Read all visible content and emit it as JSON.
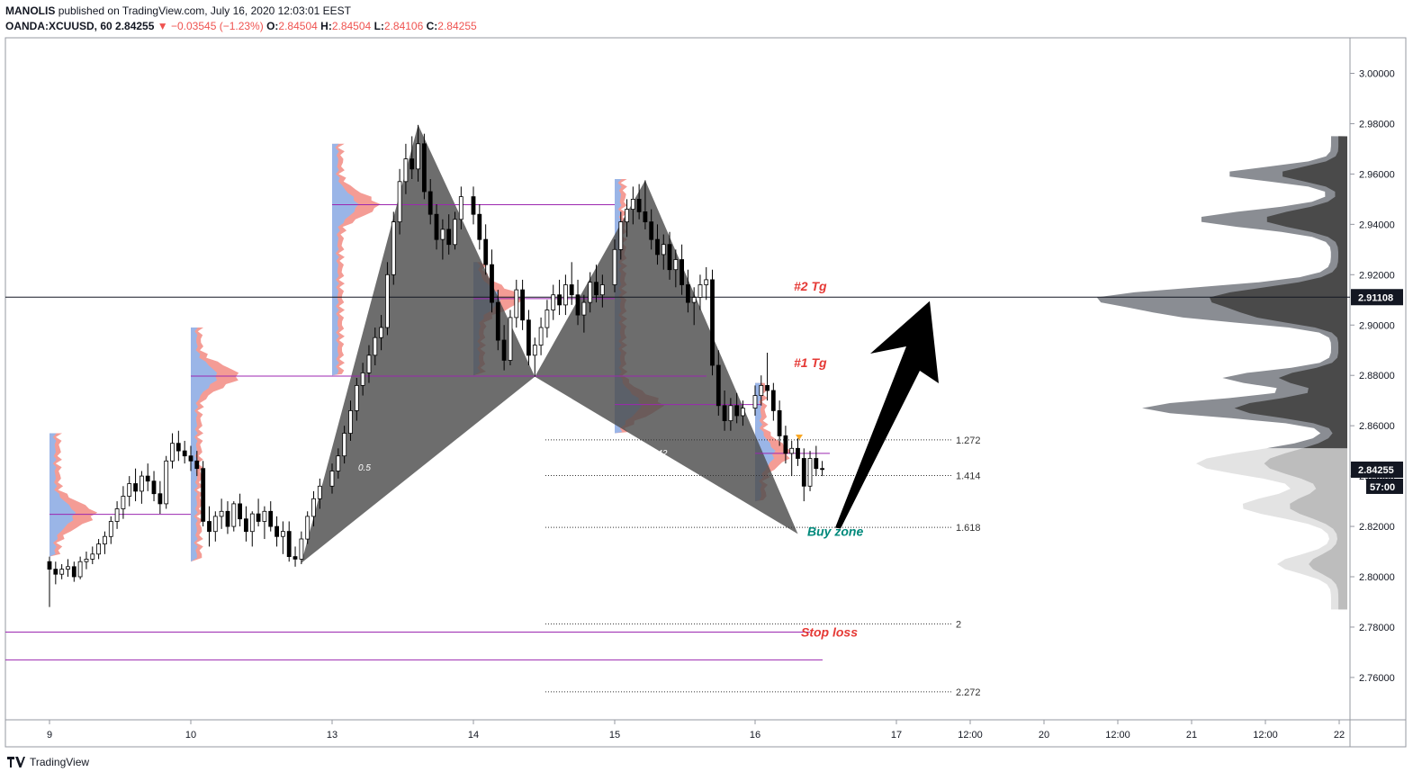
{
  "header": {
    "author": "MANOLIS",
    "published": "published on TradingView.com, July 16, 2020 12:03:01 EEST",
    "symbol": "OANDA:XCUUSD, 60",
    "last": "2.84255",
    "change": "▼ −0.03545 (−1.23%)",
    "o_label": "O:",
    "o": "2.84504",
    "h_label": "H:",
    "h": "2.84504",
    "l_label": "L:",
    "l": "2.84106",
    "c_label": "C:",
    "c": "2.84255"
  },
  "footer": {
    "brand": "TradingView"
  },
  "chart_data": {
    "type": "candlestick",
    "title": "",
    "y_ticks": [
      "3.00000",
      "2.98000",
      "2.96000",
      "2.94000",
      "2.92000",
      "2.90000",
      "2.88000",
      "2.86000",
      "2.84000",
      "2.82000",
      "2.80000",
      "2.78000",
      "2.76000"
    ],
    "x_ticks": [
      "9",
      "10",
      "13",
      "14",
      "15",
      "16",
      "17",
      "12:00",
      "20",
      "12:00",
      "21",
      "12:00",
      "22"
    ],
    "ylim": [
      2.746,
      3.01
    ],
    "price_labels": {
      "crosshair": "2.91108",
      "last": "2.84255",
      "countdown": "57:00"
    },
    "crosshair_price": 2.91108,
    "last_price": 2.84255,
    "harmonic_pattern": {
      "points": [
        {
          "date": "Jul 10 18:00",
          "price": 2.8055
        },
        {
          "date": "Jul 13 14:00",
          "price": 2.9795
        },
        {
          "date": "Jul 14 10:00",
          "price": 2.8795
        },
        {
          "date": "Jul 15 05:00",
          "price": 2.9575
        },
        {
          "date": "Jul 16 07:00",
          "price": 2.817
        }
      ],
      "ratio_labels": [
        "0.5",
        ".842"
      ]
    },
    "fib_levels": [
      {
        "label": "1.272",
        "price": 2.8544
      },
      {
        "label": "1.414",
        "price": 2.8402
      },
      {
        "label": "1.618",
        "price": 2.8196
      },
      {
        "label": "2",
        "price": 2.7813
      },
      {
        "label": "2.272",
        "price": 2.7543
      }
    ],
    "horizontal_lines": [
      2.9478,
      2.9105,
      2.8797,
      2.8684,
      2.849,
      2.8248,
      2.778,
      2.767
    ],
    "annotations": [
      {
        "text": "#2 Tg",
        "price": 2.9155,
        "color": "#e53935"
      },
      {
        "text": "#1 Tg",
        "price": 2.885,
        "color": "#e53935"
      },
      {
        "text": "Buy zone",
        "price": 2.818,
        "color": "#00897b"
      },
      {
        "text": "Stop loss",
        "price": 2.778,
        "color": "#e53935"
      }
    ],
    "arrow": {
      "from_price": 2.8195,
      "to_price": 2.9095
    },
    "candles": [
      {
        "d": "Jul 9 00:00",
        "o": 2.806,
        "h": 2.808,
        "l": 2.788,
        "c": 2.803
      },
      {
        "d": "Jul 9 01:00",
        "o": 2.803,
        "h": 2.806,
        "l": 2.797,
        "c": 2.801
      },
      {
        "d": "Jul 9 02:00",
        "o": 2.801,
        "h": 2.805,
        "l": 2.799,
        "c": 2.803
      },
      {
        "d": "Jul 9 03:00",
        "o": 2.803,
        "h": 2.807,
        "l": 2.8,
        "c": 2.804
      },
      {
        "d": "Jul 9 04:00",
        "o": 2.804,
        "h": 2.806,
        "l": 2.798,
        "c": 2.8
      },
      {
        "d": "Jul 9 05:00",
        "o": 2.8,
        "h": 2.808,
        "l": 2.799,
        "c": 2.806
      },
      {
        "d": "Jul 9 06:00",
        "o": 2.806,
        "h": 2.81,
        "l": 2.803,
        "c": 2.807
      },
      {
        "d": "Jul 9 07:00",
        "o": 2.807,
        "h": 2.812,
        "l": 2.805,
        "c": 2.809
      },
      {
        "d": "Jul 9 08:00",
        "o": 2.809,
        "h": 2.815,
        "l": 2.807,
        "c": 2.813
      },
      {
        "d": "Jul 9 09:00",
        "o": 2.813,
        "h": 2.818,
        "l": 2.809,
        "c": 2.816
      },
      {
        "d": "Jul 9 10:00",
        "o": 2.816,
        "h": 2.824,
        "l": 2.813,
        "c": 2.822
      },
      {
        "d": "Jul 9 11:00",
        "o": 2.822,
        "h": 2.83,
        "l": 2.819,
        "c": 2.827
      },
      {
        "d": "Jul 9 12:00",
        "o": 2.827,
        "h": 2.836,
        "l": 2.823,
        "c": 2.832
      },
      {
        "d": "Jul 9 13:00",
        "o": 2.832,
        "h": 2.84,
        "l": 2.828,
        "c": 2.837
      },
      {
        "d": "Jul 9 14:00",
        "o": 2.837,
        "h": 2.843,
        "l": 2.83,
        "c": 2.834
      },
      {
        "d": "Jul 9 15:00",
        "o": 2.834,
        "h": 2.842,
        "l": 2.829,
        "c": 2.84
      },
      {
        "d": "Jul 9 16:00",
        "o": 2.84,
        "h": 2.845,
        "l": 2.834,
        "c": 2.838
      },
      {
        "d": "Jul 9 17:00",
        "o": 2.838,
        "h": 2.842,
        "l": 2.83,
        "c": 2.833
      },
      {
        "d": "Jul 9 18:00",
        "o": 2.833,
        "h": 2.838,
        "l": 2.825,
        "c": 2.829
      },
      {
        "d": "Jul 9 19:00",
        "o": 2.829,
        "h": 2.848,
        "l": 2.827,
        "c": 2.846
      },
      {
        "d": "Jul 9 20:00",
        "o": 2.846,
        "h": 2.857,
        "l": 2.843,
        "c": 2.853
      },
      {
        "d": "Jul 9 21:00",
        "o": 2.853,
        "h": 2.858,
        "l": 2.846,
        "c": 2.85
      },
      {
        "d": "Jul 9 22:00",
        "o": 2.85,
        "h": 2.854,
        "l": 2.845,
        "c": 2.848
      },
      {
        "d": "Jul 10 00:00",
        "o": 2.848,
        "h": 2.852,
        "l": 2.842,
        "c": 2.846
      },
      {
        "d": "Jul 10 01:00",
        "o": 2.846,
        "h": 2.85,
        "l": 2.84,
        "c": 2.843
      },
      {
        "d": "Jul 10 02:00",
        "o": 2.843,
        "h": 2.846,
        "l": 2.82,
        "c": 2.822
      },
      {
        "d": "Jul 10 03:00",
        "o": 2.822,
        "h": 2.828,
        "l": 2.812,
        "c": 2.818
      },
      {
        "d": "Jul 10 04:00",
        "o": 2.818,
        "h": 2.826,
        "l": 2.814,
        "c": 2.824
      },
      {
        "d": "Jul 10 05:00",
        "o": 2.824,
        "h": 2.831,
        "l": 2.819,
        "c": 2.826
      },
      {
        "d": "Jul 10 06:00",
        "o": 2.826,
        "h": 2.83,
        "l": 2.817,
        "c": 2.82
      },
      {
        "d": "Jul 10 07:00",
        "o": 2.82,
        "h": 2.83,
        "l": 2.818,
        "c": 2.829
      },
      {
        "d": "Jul 10 08:00",
        "o": 2.829,
        "h": 2.833,
        "l": 2.82,
        "c": 2.823
      },
      {
        "d": "Jul 10 09:00",
        "o": 2.823,
        "h": 2.828,
        "l": 2.814,
        "c": 2.818
      },
      {
        "d": "Jul 10 10:00",
        "o": 2.818,
        "h": 2.826,
        "l": 2.812,
        "c": 2.825
      },
      {
        "d": "Jul 10 11:00",
        "o": 2.825,
        "h": 2.831,
        "l": 2.82,
        "c": 2.822
      },
      {
        "d": "Jul 10 12:00",
        "o": 2.822,
        "h": 2.828,
        "l": 2.815,
        "c": 2.826
      },
      {
        "d": "Jul 10 13:00",
        "o": 2.826,
        "h": 2.83,
        "l": 2.818,
        "c": 2.82
      },
      {
        "d": "Jul 10 14:00",
        "o": 2.82,
        "h": 2.824,
        "l": 2.812,
        "c": 2.816
      },
      {
        "d": "Jul 10 15:00",
        "o": 2.816,
        "h": 2.822,
        "l": 2.809,
        "c": 2.818
      },
      {
        "d": "Jul 10 16:00",
        "o": 2.818,
        "h": 2.822,
        "l": 2.806,
        "c": 2.808
      },
      {
        "d": "Jul 10 17:00",
        "o": 2.808,
        "h": 2.812,
        "l": 2.804,
        "c": 2.807
      },
      {
        "d": "Jul 10 18:00",
        "o": 2.807,
        "h": 2.818,
        "l": 2.805,
        "c": 2.815
      },
      {
        "d": "Jul 10 19:00",
        "o": 2.815,
        "h": 2.826,
        "l": 2.813,
        "c": 2.824
      },
      {
        "d": "Jul 10 20:00",
        "o": 2.824,
        "h": 2.834,
        "l": 2.82,
        "c": 2.831
      },
      {
        "d": "Jul 10 21:00",
        "o": 2.831,
        "h": 2.839,
        "l": 2.827,
        "c": 2.836
      },
      {
        "d": "Jul 13 00:00",
        "o": 2.836,
        "h": 2.845,
        "l": 2.833,
        "c": 2.842
      },
      {
        "d": "Jul 13 01:00",
        "o": 2.842,
        "h": 2.851,
        "l": 2.839,
        "c": 2.848
      },
      {
        "d": "Jul 13 02:00",
        "o": 2.848,
        "h": 2.86,
        "l": 2.845,
        "c": 2.857
      },
      {
        "d": "Jul 13 03:00",
        "o": 2.857,
        "h": 2.87,
        "l": 2.854,
        "c": 2.866
      },
      {
        "d": "Jul 13 04:00",
        "o": 2.866,
        "h": 2.879,
        "l": 2.862,
        "c": 2.876
      },
      {
        "d": "Jul 13 05:00",
        "o": 2.876,
        "h": 2.885,
        "l": 2.872,
        "c": 2.881
      },
      {
        "d": "Jul 13 06:00",
        "o": 2.881,
        "h": 2.892,
        "l": 2.877,
        "c": 2.888
      },
      {
        "d": "Jul 13 07:00",
        "o": 2.888,
        "h": 2.899,
        "l": 2.884,
        "c": 2.895
      },
      {
        "d": "Jul 13 08:00",
        "o": 2.895,
        "h": 2.904,
        "l": 2.89,
        "c": 2.899
      },
      {
        "d": "Jul 13 09:00",
        "o": 2.899,
        "h": 2.925,
        "l": 2.896,
        "c": 2.92
      },
      {
        "d": "Jul 13 10:00",
        "o": 2.92,
        "h": 2.945,
        "l": 2.916,
        "c": 2.941
      },
      {
        "d": "Jul 13 11:00",
        "o": 2.941,
        "h": 2.962,
        "l": 2.936,
        "c": 2.957
      },
      {
        "d": "Jul 13 12:00",
        "o": 2.957,
        "h": 2.972,
        "l": 2.952,
        "c": 2.966
      },
      {
        "d": "Jul 13 13:00",
        "o": 2.966,
        "h": 2.975,
        "l": 2.958,
        "c": 2.962
      },
      {
        "d": "Jul 13 14:00",
        "o": 2.962,
        "h": 2.9795,
        "l": 2.957,
        "c": 2.972
      },
      {
        "d": "Jul 13 15:00",
        "o": 2.972,
        "h": 2.976,
        "l": 2.95,
        "c": 2.953
      },
      {
        "d": "Jul 13 16:00",
        "o": 2.953,
        "h": 2.958,
        "l": 2.94,
        "c": 2.944
      },
      {
        "d": "Jul 13 17:00",
        "o": 2.944,
        "h": 2.948,
        "l": 2.93,
        "c": 2.934
      },
      {
        "d": "Jul 13 18:00",
        "o": 2.934,
        "h": 2.942,
        "l": 2.926,
        "c": 2.938
      },
      {
        "d": "Jul 13 19:00",
        "o": 2.938,
        "h": 2.944,
        "l": 2.928,
        "c": 2.932
      },
      {
        "d": "Jul 13 20:00",
        "o": 2.932,
        "h": 2.945,
        "l": 2.93,
        "c": 2.942
      },
      {
        "d": "Jul 13 21:00",
        "o": 2.942,
        "h": 2.955,
        "l": 2.938,
        "c": 2.951
      },
      {
        "d": "Jul 14 00:00",
        "o": 2.951,
        "h": 2.955,
        "l": 2.94,
        "c": 2.944
      },
      {
        "d": "Jul 14 01:00",
        "o": 2.944,
        "h": 2.948,
        "l": 2.93,
        "c": 2.934
      },
      {
        "d": "Jul 14 02:00",
        "o": 2.934,
        "h": 2.94,
        "l": 2.92,
        "c": 2.924
      },
      {
        "d": "Jul 14 03:00",
        "o": 2.924,
        "h": 2.93,
        "l": 2.905,
        "c": 2.909
      },
      {
        "d": "Jul 14 04:00",
        "o": 2.909,
        "h": 2.914,
        "l": 2.89,
        "c": 2.894
      },
      {
        "d": "Jul 14 05:00",
        "o": 2.894,
        "h": 2.9,
        "l": 2.882,
        "c": 2.886
      },
      {
        "d": "Jul 14 06:00",
        "o": 2.886,
        "h": 2.906,
        "l": 2.884,
        "c": 2.903
      },
      {
        "d": "Jul 14 07:00",
        "o": 2.903,
        "h": 2.918,
        "l": 2.899,
        "c": 2.914
      },
      {
        "d": "Jul 14 08:00",
        "o": 2.914,
        "h": 2.918,
        "l": 2.898,
        "c": 2.902
      },
      {
        "d": "Jul 14 09:00",
        "o": 2.902,
        "h": 2.906,
        "l": 2.884,
        "c": 2.888
      },
      {
        "d": "Jul 14 10:00",
        "o": 2.888,
        "h": 2.895,
        "l": 2.8795,
        "c": 2.892
      },
      {
        "d": "Jul 14 11:00",
        "o": 2.892,
        "h": 2.903,
        "l": 2.888,
        "c": 2.899
      },
      {
        "d": "Jul 14 12:00",
        "o": 2.899,
        "h": 2.91,
        "l": 2.895,
        "c": 2.906
      },
      {
        "d": "Jul 14 13:00",
        "o": 2.906,
        "h": 2.916,
        "l": 2.902,
        "c": 2.912
      },
      {
        "d": "Jul 14 14:00",
        "o": 2.912,
        "h": 2.918,
        "l": 2.904,
        "c": 2.908
      },
      {
        "d": "Jul 14 15:00",
        "o": 2.908,
        "h": 2.92,
        "l": 2.904,
        "c": 2.916
      },
      {
        "d": "Jul 14 16:00",
        "o": 2.916,
        "h": 2.925,
        "l": 2.908,
        "c": 2.912
      },
      {
        "d": "Jul 14 17:00",
        "o": 2.912,
        "h": 2.918,
        "l": 2.9,
        "c": 2.904
      },
      {
        "d": "Jul 14 18:00",
        "o": 2.904,
        "h": 2.912,
        "l": 2.897,
        "c": 2.909
      },
      {
        "d": "Jul 14 19:00",
        "o": 2.909,
        "h": 2.921,
        "l": 2.905,
        "c": 2.917
      },
      {
        "d": "Jul 14 20:00",
        "o": 2.917,
        "h": 2.924,
        "l": 2.909,
        "c": 2.912
      },
      {
        "d": "Jul 14 21:00",
        "o": 2.912,
        "h": 2.92,
        "l": 2.907,
        "c": 2.916
      },
      {
        "d": "Jul 15 00:00",
        "o": 2.916,
        "h": 2.934,
        "l": 2.913,
        "c": 2.93
      },
      {
        "d": "Jul 15 01:00",
        "o": 2.93,
        "h": 2.945,
        "l": 2.926,
        "c": 2.941
      },
      {
        "d": "Jul 15 02:00",
        "o": 2.941,
        "h": 2.95,
        "l": 2.935,
        "c": 2.946
      },
      {
        "d": "Jul 15 03:00",
        "o": 2.946,
        "h": 2.955,
        "l": 2.94,
        "c": 2.95
      },
      {
        "d": "Jul 15 04:00",
        "o": 2.95,
        "h": 2.956,
        "l": 2.942,
        "c": 2.945
      },
      {
        "d": "Jul 15 05:00",
        "o": 2.945,
        "h": 2.9575,
        "l": 2.938,
        "c": 2.941
      },
      {
        "d": "Jul 15 06:00",
        "o": 2.941,
        "h": 2.946,
        "l": 2.93,
        "c": 2.934
      },
      {
        "d": "Jul 15 07:00",
        "o": 2.934,
        "h": 2.94,
        "l": 2.924,
        "c": 2.928
      },
      {
        "d": "Jul 15 08:00",
        "o": 2.928,
        "h": 2.936,
        "l": 2.922,
        "c": 2.932
      },
      {
        "d": "Jul 15 09:00",
        "o": 2.932,
        "h": 2.937,
        "l": 2.918,
        "c": 2.922
      },
      {
        "d": "Jul 15 10:00",
        "o": 2.922,
        "h": 2.93,
        "l": 2.915,
        "c": 2.926
      },
      {
        "d": "Jul 15 11:00",
        "o": 2.926,
        "h": 2.932,
        "l": 2.912,
        "c": 2.916
      },
      {
        "d": "Jul 15 12:00",
        "o": 2.916,
        "h": 2.922,
        "l": 2.905,
        "c": 2.909
      },
      {
        "d": "Jul 15 13:00",
        "o": 2.909,
        "h": 2.915,
        "l": 2.9,
        "c": 2.911
      },
      {
        "d": "Jul 15 14:00",
        "o": 2.911,
        "h": 2.92,
        "l": 2.906,
        "c": 2.916
      },
      {
        "d": "Jul 15 15:00",
        "o": 2.916,
        "h": 2.923,
        "l": 2.91,
        "c": 2.918
      },
      {
        "d": "Jul 15 16:00",
        "o": 2.918,
        "h": 2.922,
        "l": 2.88,
        "c": 2.884
      },
      {
        "d": "Jul 15 17:00",
        "o": 2.884,
        "h": 2.89,
        "l": 2.864,
        "c": 2.868
      },
      {
        "d": "Jul 15 18:00",
        "o": 2.868,
        "h": 2.874,
        "l": 2.858,
        "c": 2.862
      },
      {
        "d": "Jul 15 19:00",
        "o": 2.862,
        "h": 2.871,
        "l": 2.858,
        "c": 2.868
      },
      {
        "d": "Jul 15 20:00",
        "o": 2.868,
        "h": 2.873,
        "l": 2.861,
        "c": 2.864
      },
      {
        "d": "Jul 15 21:00",
        "o": 2.864,
        "h": 2.87,
        "l": 2.86,
        "c": 2.867
      },
      {
        "d": "Jul 16 00:00",
        "o": 2.867,
        "h": 2.876,
        "l": 2.864,
        "c": 2.872
      },
      {
        "d": "Jul 16 01:00",
        "o": 2.872,
        "h": 2.88,
        "l": 2.868,
        "c": 2.876
      },
      {
        "d": "Jul 16 02:00",
        "o": 2.876,
        "h": 2.889,
        "l": 2.87,
        "c": 2.874
      },
      {
        "d": "Jul 16 03:00",
        "o": 2.874,
        "h": 2.877,
        "l": 2.862,
        "c": 2.866
      },
      {
        "d": "Jul 16 04:00",
        "o": 2.866,
        "h": 2.87,
        "l": 2.852,
        "c": 2.856
      },
      {
        "d": "Jul 16 05:00",
        "o": 2.856,
        "h": 2.86,
        "l": 2.845,
        "c": 2.849
      },
      {
        "d": "Jul 16 06:00",
        "o": 2.849,
        "h": 2.854,
        "l": 2.84,
        "c": 2.851
      },
      {
        "d": "Jul 16 07:00",
        "o": 2.851,
        "h": 2.855,
        "l": 2.844,
        "c": 2.847
      },
      {
        "d": "Jul 16 08:00",
        "o": 2.847,
        "h": 2.851,
        "l": 2.83,
        "c": 2.836
      },
      {
        "d": "Jul 16 09:00",
        "o": 2.836,
        "h": 2.85,
        "l": 2.834,
        "c": 2.847
      },
      {
        "d": "Jul 16 10:00",
        "o": 2.847,
        "h": 2.852,
        "l": 2.84,
        "c": 2.843
      },
      {
        "d": "Jul 16 11:00",
        "o": 2.843,
        "h": 2.846,
        "l": 2.84,
        "c": 2.8426
      }
    ]
  }
}
